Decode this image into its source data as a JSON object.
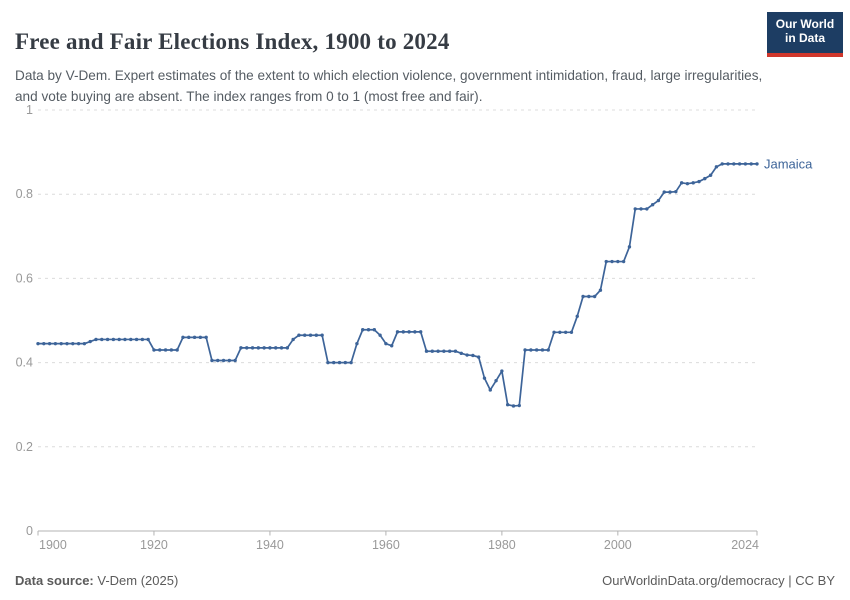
{
  "header": {
    "title": "Free and Fair Elections Index, 1900 to 2024",
    "subtitle": "Data by V-Dem. Expert estimates of the extent to which election violence, government intimidation, fraud, large irregularities, and vote buying are absent. The index ranges from 0 to 1 (most free and fair).",
    "logo_line1": "Our World",
    "logo_line2": "in Data"
  },
  "chart_data": {
    "type": "line",
    "title": "Free and Fair Elections Index, 1900 to 2024",
    "xlabel": "",
    "ylabel": "",
    "xlim": [
      1900,
      2024
    ],
    "ylim": [
      0,
      1
    ],
    "grid": "horizontal-dashed",
    "legend_position": "end-of-line-label",
    "xticks": [
      1900,
      1920,
      1940,
      1960,
      1980,
      2000,
      2024
    ],
    "yticks": [
      {
        "v": 0,
        "label": "0"
      },
      {
        "v": 0.2,
        "label": "0.2"
      },
      {
        "v": 0.4,
        "label": "0.4"
      },
      {
        "v": 0.6,
        "label": "0.6"
      },
      {
        "v": 0.8,
        "label": "0.8"
      },
      {
        "v": 1,
        "label": "1"
      }
    ],
    "series": [
      {
        "name": "Jamaica",
        "color": "#3d6499",
        "x_start": 1900,
        "x_step": 1,
        "values": [
          0.445,
          0.445,
          0.445,
          0.445,
          0.445,
          0.445,
          0.445,
          0.445,
          0.445,
          0.45,
          0.455,
          0.455,
          0.455,
          0.455,
          0.455,
          0.455,
          0.455,
          0.455,
          0.455,
          0.455,
          0.43,
          0.43,
          0.43,
          0.43,
          0.43,
          0.46,
          0.46,
          0.46,
          0.46,
          0.46,
          0.405,
          0.405,
          0.405,
          0.405,
          0.405,
          0.435,
          0.435,
          0.435,
          0.435,
          0.435,
          0.435,
          0.435,
          0.435,
          0.435,
          0.455,
          0.465,
          0.465,
          0.465,
          0.465,
          0.465,
          0.4,
          0.4,
          0.4,
          0.4,
          0.4,
          0.445,
          0.478,
          0.478,
          0.478,
          0.465,
          0.445,
          0.44,
          0.473,
          0.473,
          0.473,
          0.473,
          0.473,
          0.427,
          0.427,
          0.427,
          0.427,
          0.427,
          0.427,
          0.422,
          0.418,
          0.417,
          0.413,
          0.363,
          0.335,
          0.357,
          0.38,
          0.3,
          0.297,
          0.298,
          0.43,
          0.43,
          0.43,
          0.43,
          0.43,
          0.472,
          0.472,
          0.472,
          0.472,
          0.51,
          0.557,
          0.557,
          0.557,
          0.572,
          0.64,
          0.64,
          0.64,
          0.64,
          0.675,
          0.765,
          0.765,
          0.765,
          0.775,
          0.785,
          0.805,
          0.805,
          0.806,
          0.827,
          0.825,
          0.827,
          0.83,
          0.837,
          0.845,
          0.865,
          0.872,
          0.872,
          0.872,
          0.872,
          0.872,
          0.872,
          0.872
        ]
      }
    ]
  },
  "footer": {
    "source_label": "Data source:",
    "source_value": " V-Dem (2025)",
    "right_text": "OurWorldinData.org/democracy | CC BY"
  },
  "colors": {
    "line": "#3d6499",
    "grid": "#dcdcdc",
    "axis": "#b3b3b3",
    "tick_text": "#999999",
    "logo_bg": "#1d3d63",
    "logo_red": "#d0372c"
  }
}
